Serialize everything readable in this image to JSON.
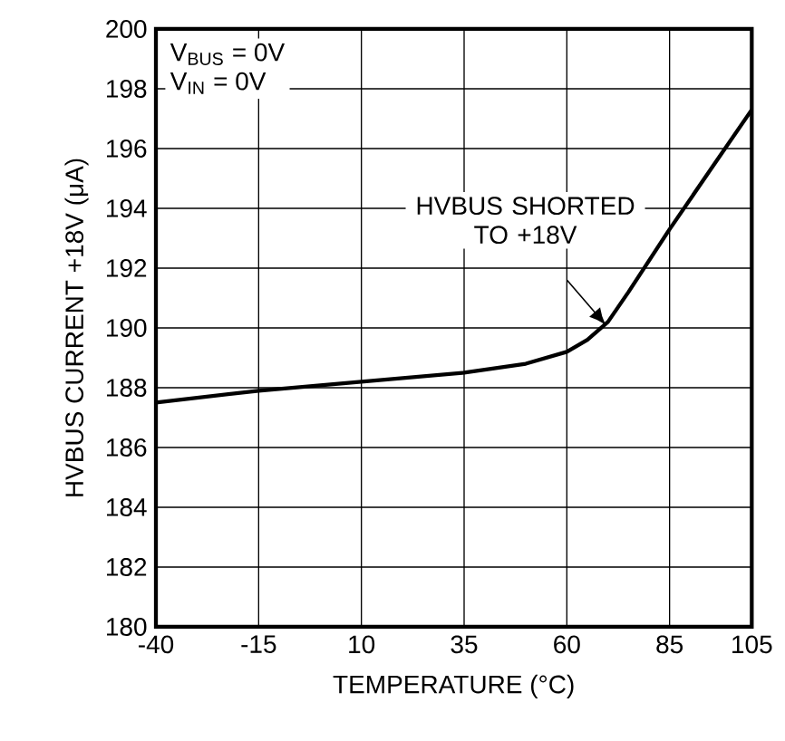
{
  "chart_data": {
    "type": "line",
    "xlabel": "TEMPERATURE (°C)",
    "ylabel": "HVBUS CURRENT +18V (μA)",
    "x": [
      -40,
      -15,
      10,
      35,
      50,
      60,
      65,
      70,
      75,
      85,
      95,
      105
    ],
    "series": [
      {
        "color": "#000000",
        "values": [
          187.5,
          187.9,
          188.2,
          188.5,
          188.8,
          189.2,
          189.6,
          190.2,
          191.2,
          193.3,
          195.3,
          197.3
        ]
      }
    ],
    "xlim": [
      -40,
      105
    ],
    "xticks": [
      -40,
      -15,
      10,
      35,
      60,
      85,
      105
    ],
    "ylim": [
      180,
      200
    ],
    "yticks": [
      180,
      182,
      184,
      186,
      188,
      190,
      192,
      194,
      196,
      198,
      200
    ],
    "grid": true,
    "annotations": [
      "HVBUS SHORTED TO +18V",
      "V$_{BUS}$ = 0V",
      "V$_{IN}$ = 0V"
    ]
  }
}
